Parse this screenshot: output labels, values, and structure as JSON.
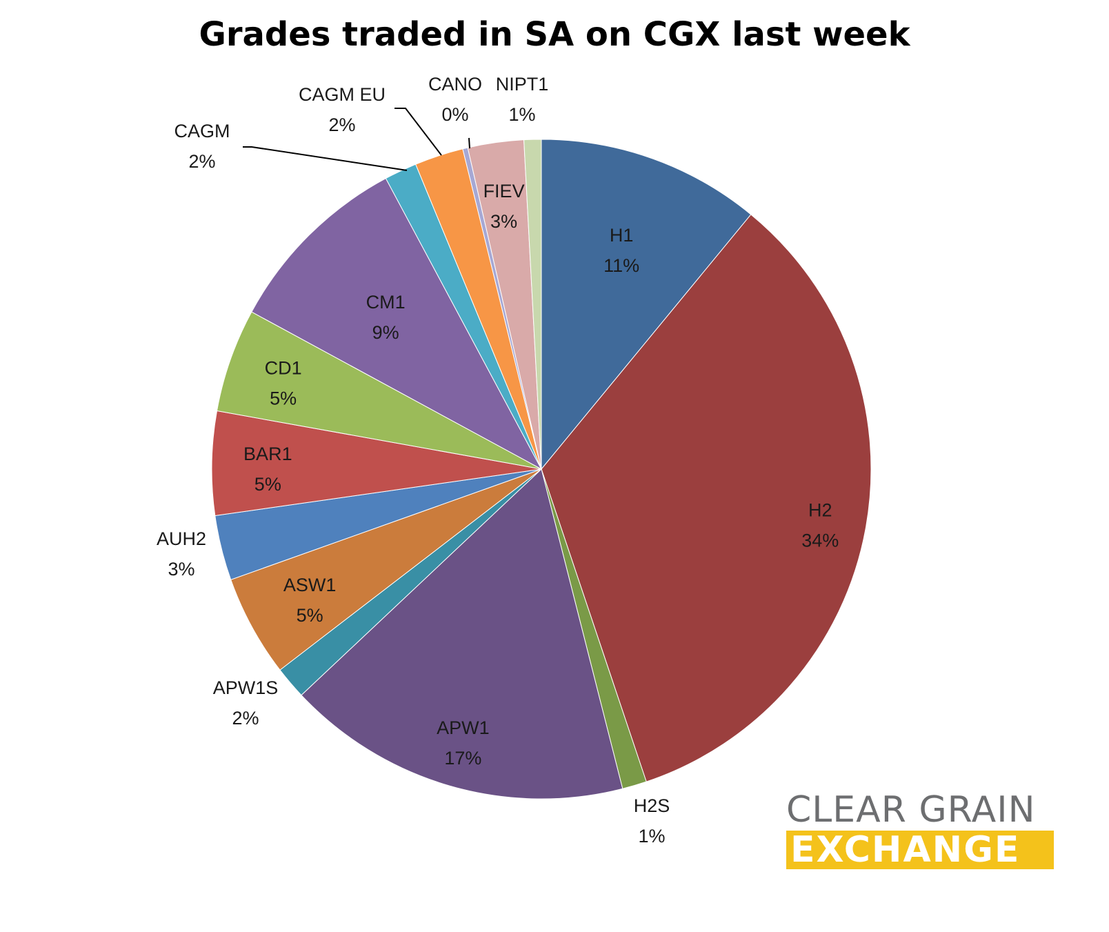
{
  "chart_data": {
    "type": "pie",
    "title": "Grades traded in SA on CGX last week",
    "slices": [
      {
        "name": "H1",
        "value": 11,
        "label": "11%",
        "color": "#406a9a"
      },
      {
        "name": "H2",
        "value": 34,
        "label": "34%",
        "color": "#9b3f3e"
      },
      {
        "name": "H2S",
        "value": 1.2,
        "label": "1%",
        "color": "#7a9a47"
      },
      {
        "name": "APW1",
        "value": 17,
        "label": "17%",
        "color": "#6a5286"
      },
      {
        "name": "APW1S",
        "value": 1.6,
        "label": "2%",
        "color": "#398fa5"
      },
      {
        "name": "ASW1",
        "value": 5,
        "label": "5%",
        "color": "#cb7c3c"
      },
      {
        "name": "AUH2",
        "value": 3.2,
        "label": "3%",
        "color": "#4f81bd"
      },
      {
        "name": "BAR1",
        "value": 5.1,
        "label": "5%",
        "color": "#c0504d"
      },
      {
        "name": "CD1",
        "value": 5.1,
        "label": "5%",
        "color": "#9bbb59"
      },
      {
        "name": "CM1",
        "value": 9.3,
        "label": "9%",
        "color": "#8064a2"
      },
      {
        "name": "CAGM",
        "value": 1.6,
        "label": "2%",
        "color": "#4bacc6"
      },
      {
        "name": "CAGM EU",
        "value": 2.4,
        "label": "2%",
        "color": "#f79646"
      },
      {
        "name": "CANO",
        "value": 0.25,
        "label": "0%",
        "color": "#a6a8d4"
      },
      {
        "name": "FIEV",
        "value": 2.75,
        "label": "3%",
        "color": "#d9aaa9"
      },
      {
        "name": "NIPT1",
        "value": 0.85,
        "label": "1%",
        "color": "#c8d8ad"
      }
    ]
  },
  "logo": {
    "line1": "CLEAR GRAIN",
    "line2": "EXCHANGE",
    "accent_color": "#f4c21b",
    "text_color": "#6d6e70"
  }
}
